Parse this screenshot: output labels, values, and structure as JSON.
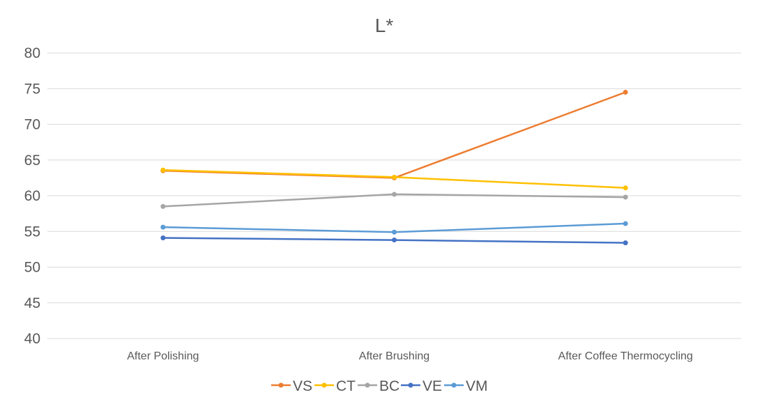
{
  "chart_data": {
    "type": "line",
    "title": "L*",
    "xlabel": "",
    "ylabel": "",
    "categories": [
      "After Polishing",
      "After Brushing",
      "After Coffee Thermocycling"
    ],
    "ylim": [
      40,
      80
    ],
    "yticks": [
      40,
      45,
      50,
      55,
      60,
      65,
      70,
      75,
      80
    ],
    "grid": true,
    "legend_position": "bottom",
    "series": [
      {
        "name": "VS",
        "color": "#ED7D31",
        "values": [
          63.5,
          62.5,
          74.5
        ]
      },
      {
        "name": "CT",
        "color": "#FFC000",
        "values": [
          63.6,
          62.6,
          61.1
        ]
      },
      {
        "name": "BC",
        "color": "#A5A5A5",
        "values": [
          58.5,
          60.2,
          59.8
        ]
      },
      {
        "name": "VE",
        "color": "#4472C4",
        "values": [
          54.1,
          53.8,
          53.4
        ]
      },
      {
        "name": "VM",
        "color": "#5B9BD5",
        "values": [
          55.6,
          54.9,
          56.1
        ]
      }
    ]
  }
}
